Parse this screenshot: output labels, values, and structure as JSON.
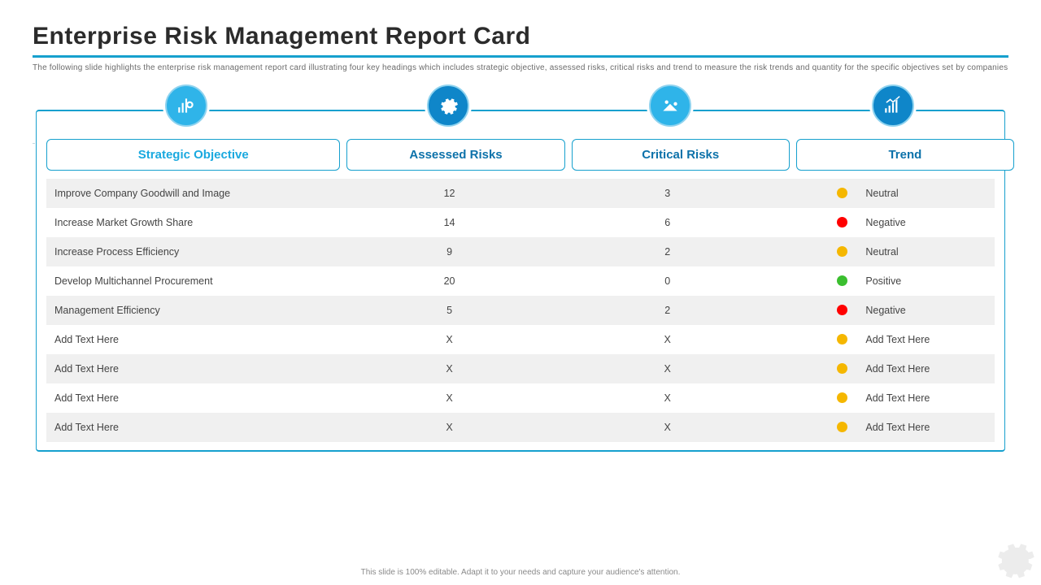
{
  "title": "Enterprise Risk Management Report Card",
  "subtitle": "The following slide highlights the enterprise risk management report card illustrating four key headings which includes strategic objective, assessed risks, critical risks and trend to measure the risk trends and quantity for the specific objectives set by companies",
  "footer": "This slide is 100% editable. Adapt it to your needs and capture your audience's attention.",
  "colors": {
    "accent": "#16a0ce",
    "header_text": "#0d72aa",
    "header_text_first": "#1aa9df",
    "row_alt_bg": "#f0f0f0",
    "row_bg": "#ffffff",
    "icon_bg": "#0f86c9",
    "icon_bg_light": "#2fb4e9",
    "dot_neutral": "#f5b700",
    "dot_negative": "#ff0000",
    "dot_positive": "#3bbf2f"
  },
  "table": {
    "type": "table",
    "columns": [
      "Strategic Objective",
      "Assessed Risks",
      "Critical Risks",
      "Trend"
    ],
    "column_icons": [
      "target-chart-icon",
      "gear-badge-icon",
      "balance-icon",
      "trend-up-icon"
    ],
    "rows": [
      {
        "objective": "Improve Company Goodwill and Image",
        "assessed": "12",
        "critical": "3",
        "trend_label": "Neutral",
        "trend_color": "#f5b700"
      },
      {
        "objective": "Increase Market Growth Share",
        "assessed": "14",
        "critical": "6",
        "trend_label": "Negative",
        "trend_color": "#ff0000"
      },
      {
        "objective": "Increase Process Efficiency",
        "assessed": "9",
        "critical": "2",
        "trend_label": "Neutral",
        "trend_color": "#f5b700"
      },
      {
        "objective": "Develop Multichannel Procurement",
        "assessed": "20",
        "critical": "0",
        "trend_label": "Positive",
        "trend_color": "#3bbf2f"
      },
      {
        "objective": "Management Efficiency",
        "assessed": "5",
        "critical": "2",
        "trend_label": "Negative",
        "trend_color": "#ff0000"
      },
      {
        "objective": "Add Text Here",
        "assessed": "X",
        "critical": "X",
        "trend_label": "Add Text Here",
        "trend_color": "#f5b700"
      },
      {
        "objective": "Add Text Here",
        "assessed": "X",
        "critical": "X",
        "trend_label": "Add Text Here",
        "trend_color": "#f5b700"
      },
      {
        "objective": "Add Text Here",
        "assessed": "X",
        "critical": "X",
        "trend_label": "Add Text Here",
        "trend_color": "#f5b700"
      },
      {
        "objective": "Add Text Here",
        "assessed": "X",
        "critical": "X",
        "trend_label": "Add Text Here",
        "trend_color": "#f5b700"
      }
    ]
  }
}
